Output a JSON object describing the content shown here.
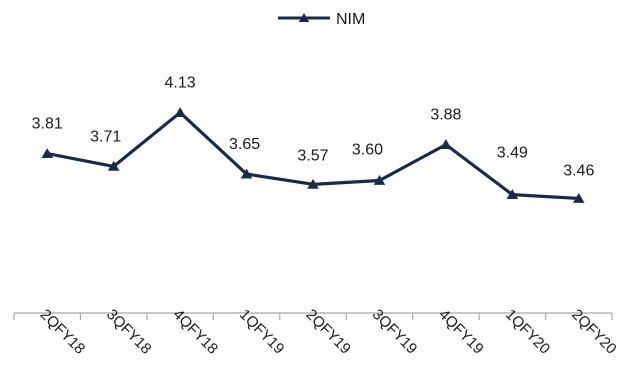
{
  "chart_data": {
    "type": "line",
    "categories": [
      "2QFY18",
      "3QFY18",
      "4QFY18",
      "1QFY19",
      "2QFY19",
      "3QFY19",
      "4QFY19",
      "1QFY20",
      "2QFY20"
    ],
    "series": [
      {
        "name": "NIM",
        "values": [
          3.81,
          3.71,
          4.13,
          3.65,
          3.57,
          3.6,
          3.88,
          3.49,
          3.46
        ],
        "labels": [
          "3.81",
          "3.71",
          "4.13",
          "3.65",
          "3.57",
          "3.60",
          "3.88",
          "3.49",
          "3.46"
        ],
        "color": "#1b2a48",
        "marker": "triangle"
      }
    ],
    "title": "",
    "xlabel": "",
    "ylabel": "",
    "ylim": [
      2.8,
      4.4
    ],
    "grid": false,
    "legend_position": "top-center",
    "axis_color": "#a6a6a6"
  }
}
